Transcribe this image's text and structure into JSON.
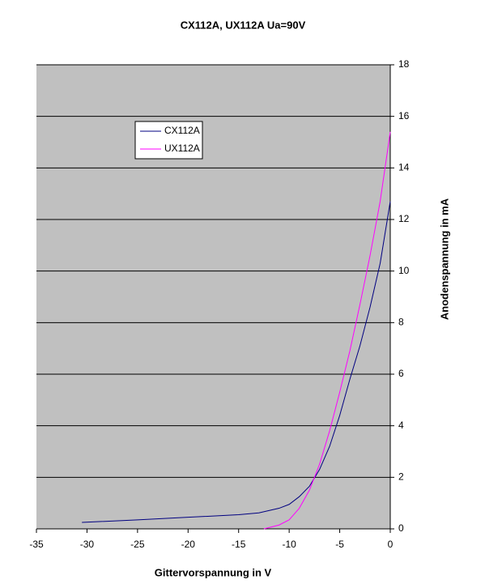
{
  "chart_data": {
    "type": "line",
    "title": "CX112A, UX112A Ua=90V",
    "x_label": "Gittervorspannung in V",
    "y_label": "Anodenspannung in mA",
    "xlim": [
      -35,
      0
    ],
    "xticks": [
      -35,
      -30,
      -25,
      -20,
      -15,
      -10,
      -5,
      0
    ],
    "ylim": [
      0,
      18
    ],
    "yticks": [
      0,
      2,
      4,
      6,
      8,
      10,
      12,
      14,
      16,
      18
    ],
    "grid": true,
    "legend": "upper left",
    "y_axis_side": "right",
    "background": "#c0c0c0",
    "series": [
      {
        "name": "CX112A",
        "color": "#000080",
        "x": [
          -30.5,
          -25,
          -20,
          -15,
          -13,
          -11,
          -10,
          -9,
          -8,
          -7,
          -6,
          -5,
          -4,
          -3,
          -2,
          -1,
          0
        ],
        "values": [
          0.25,
          0.35,
          0.45,
          0.55,
          0.62,
          0.8,
          0.95,
          1.25,
          1.65,
          2.3,
          3.2,
          4.4,
          5.8,
          7.1,
          8.6,
          10.3,
          12.7
        ]
      },
      {
        "name": "UX112A",
        "color": "#ff00ff",
        "x": [
          -12.5,
          -11,
          -10,
          -9,
          -8,
          -7,
          -6,
          -5,
          -4,
          -3,
          -2,
          -1,
          0
        ],
        "values": [
          0,
          0.15,
          0.35,
          0.8,
          1.5,
          2.5,
          3.8,
          5.3,
          6.9,
          8.7,
          10.6,
          12.7,
          15.4
        ]
      }
    ]
  }
}
